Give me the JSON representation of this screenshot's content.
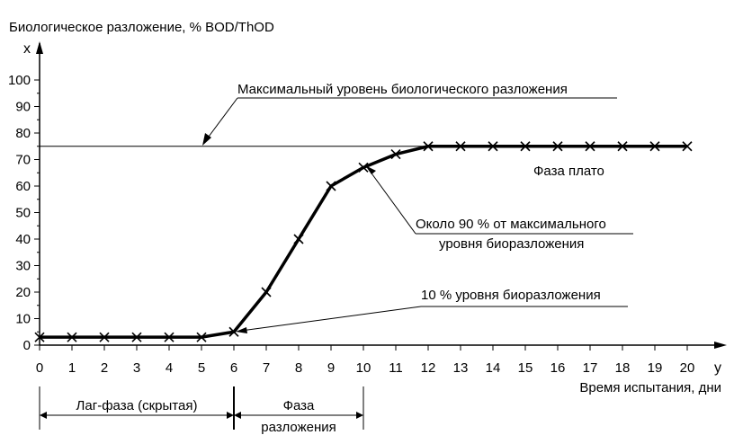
{
  "chart_data": {
    "type": "line",
    "title": "Биологическое разложение, % BOD/ThOD",
    "y_axis_letter": "x",
    "x_axis_letter": "y",
    "xlabel": "Время испытания, дни",
    "xlim": [
      0,
      21
    ],
    "ylim": [
      0,
      107
    ],
    "x_ticks": [
      0,
      1,
      2,
      3,
      4,
      5,
      6,
      7,
      8,
      9,
      10,
      11,
      12,
      13,
      14,
      15,
      16,
      17,
      18,
      19,
      20
    ],
    "y_ticks": [
      0,
      10,
      20,
      30,
      40,
      50,
      60,
      70,
      80,
      90,
      100
    ],
    "grid": false,
    "series": [
      {
        "x": [
          0,
          1,
          2,
          3,
          4,
          5,
          6,
          7,
          8,
          9,
          10,
          11,
          12,
          13,
          14,
          15,
          16,
          17,
          18,
          19,
          20
        ],
        "y": [
          3,
          3,
          3,
          3,
          3,
          3,
          5,
          20,
          40,
          60,
          67,
          72,
          75,
          75,
          75,
          75,
          75,
          75,
          75,
          75,
          75
        ],
        "marker": "x"
      }
    ],
    "max_level": 75,
    "annotations": {
      "max_line": "Максимальный уровень биологического разложения",
      "plateau": "Фаза плато",
      "ninety_line1": "Около 90 % от максимального",
      "ninety_line2": "уровня биоразложения",
      "ten": "10 % уровня биоразложения"
    },
    "phases": {
      "lag": "Лаг-фаза (скрытая)",
      "decomp_line1": "Фаза",
      "decomp_line2": "разложения",
      "lag_range": [
        0,
        6
      ],
      "decomp_range": [
        6,
        10
      ]
    }
  }
}
